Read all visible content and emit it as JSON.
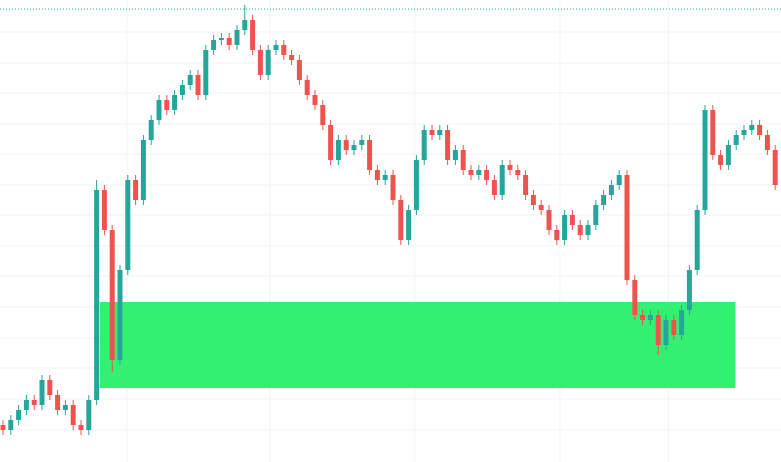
{
  "chart_data": {
    "type": "candlestick",
    "up_color": "#26a69a",
    "down_color": "#ef5350",
    "ylim": [
      0,
      462
    ],
    "grid": true,
    "grid_y": [
      430,
      399,
      369,
      338,
      308,
      277,
      247,
      216,
      186,
      155,
      124,
      94,
      63,
      32
    ],
    "grid_x": [
      15.9,
      34.2,
      52.8,
      71.4,
      85.3
    ],
    "price_line": {
      "value": 453,
      "color": "#26a69a"
    },
    "zones": [
      {
        "start": 12.4,
        "end": 93.9,
        "top": 160,
        "bottom": 74,
        "color": "#34f070"
      }
    ],
    "open": [
      37,
      32,
      42,
      52,
      62,
      57,
      82,
      67,
      52,
      57,
      37,
      32,
      62,
      272,
      232,
      102,
      192,
      282,
      262,
      322,
      342,
      362,
      352,
      367,
      377,
      387,
      367,
      412,
      422,
      424,
      417,
      432,
      442,
      412,
      387,
      412,
      417,
      407,
      402,
      382,
      367,
      357,
      337,
      302,
      322,
      312,
      317,
      322,
      292,
      282,
      287,
      262,
      222,
      252,
      302,
      332,
      327,
      332,
      302,
      312,
      292,
      287,
      292,
      282,
      267,
      297,
      292,
      287,
      267,
      257,
      252,
      232,
      222,
      247,
      237,
      227,
      237,
      257,
      267,
      277,
      287,
      182,
      147,
      142,
      147,
      117,
      142,
      127,
      152,
      192,
      252,
      352,
      307,
      297,
      317,
      327,
      332,
      337,
      327,
      312
    ],
    "high": [
      42,
      47,
      57,
      67,
      67,
      87,
      87,
      72,
      62,
      62,
      42,
      67,
      282,
      277,
      237,
      197,
      287,
      287,
      327,
      347,
      367,
      367,
      372,
      382,
      392,
      392,
      417,
      427,
      429,
      429,
      437,
      457,
      447,
      417,
      417,
      422,
      422,
      412,
      407,
      387,
      372,
      362,
      342,
      327,
      327,
      322,
      327,
      327,
      297,
      292,
      292,
      267,
      257,
      307,
      337,
      337,
      337,
      337,
      317,
      317,
      297,
      297,
      297,
      287,
      302,
      302,
      297,
      292,
      272,
      262,
      257,
      237,
      252,
      252,
      242,
      242,
      262,
      272,
      282,
      292,
      292,
      187,
      152,
      152,
      152,
      147,
      147,
      157,
      197,
      257,
      357,
      357,
      312,
      322,
      332,
      337,
      342,
      342,
      332,
      317
    ],
    "low": [
      27,
      27,
      37,
      47,
      52,
      52,
      62,
      47,
      47,
      32,
      27,
      27,
      57,
      227,
      90,
      97,
      187,
      257,
      257,
      317,
      337,
      347,
      347,
      362,
      372,
      362,
      362,
      407,
      417,
      412,
      412,
      427,
      407,
      382,
      382,
      407,
      402,
      397,
      377,
      362,
      352,
      332,
      297,
      297,
      307,
      307,
      312,
      287,
      277,
      277,
      257,
      217,
      217,
      247,
      297,
      322,
      322,
      297,
      297,
      287,
      282,
      282,
      277,
      262,
      262,
      287,
      282,
      262,
      252,
      247,
      227,
      217,
      217,
      232,
      222,
      222,
      232,
      252,
      262,
      272,
      177,
      142,
      137,
      137,
      107,
      112,
      122,
      122,
      147,
      187,
      247,
      302,
      292,
      292,
      312,
      322,
      327,
      322,
      307,
      272
    ],
    "close": [
      32,
      42,
      52,
      62,
      57,
      82,
      67,
      52,
      57,
      37,
      32,
      62,
      272,
      232,
      102,
      192,
      282,
      262,
      322,
      342,
      362,
      352,
      367,
      377,
      387,
      367,
      412,
      422,
      424,
      417,
      432,
      442,
      412,
      387,
      412,
      417,
      407,
      402,
      382,
      367,
      357,
      337,
      302,
      322,
      312,
      317,
      322,
      292,
      282,
      287,
      262,
      222,
      252,
      302,
      332,
      327,
      332,
      302,
      312,
      292,
      287,
      292,
      282,
      267,
      297,
      292,
      287,
      267,
      257,
      252,
      232,
      222,
      247,
      237,
      227,
      237,
      257,
      267,
      277,
      287,
      182,
      147,
      142,
      147,
      117,
      142,
      127,
      152,
      192,
      252,
      352,
      307,
      297,
      317,
      327,
      332,
      337,
      327,
      312,
      277
    ]
  }
}
